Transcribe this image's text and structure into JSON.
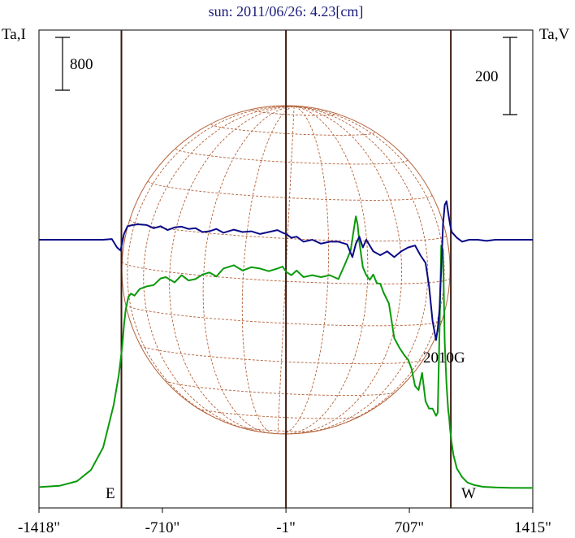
{
  "chart_data": {
    "type": "line",
    "title": "sun: 2011/06/26: 4.23[cm]",
    "left_axis_label": "Ta,I",
    "right_axis_label": "Ta,V",
    "left_scale_bar": "800",
    "right_scale_bar": "200",
    "x_tick_labels": [
      "-1418\"",
      "-710\"",
      "-1\"",
      "707\"",
      "1415\""
    ],
    "x_ticks": [
      -1418,
      -710,
      -1,
      707,
      1415
    ],
    "xlim": [
      -1418,
      1415
    ],
    "marker_labels": {
      "east": "E",
      "west": "W"
    },
    "markers_arcsec": {
      "east": -945,
      "center": -1,
      "west": 945
    },
    "region_label": "2010G",
    "grid": false,
    "colors": {
      "stokes_i": "#0a9a0a",
      "stokes_v": "#0a0a88",
      "disk": "#b5623a",
      "marker": "#3a1a10",
      "title": "#1a1a7a"
    },
    "series": [
      {
        "key": "stokes_i",
        "x": [
          -1418,
          -1300,
          -1200,
          -1120,
          -1050,
          -990,
          -960,
          -940,
          -930,
          -920,
          -905,
          -890,
          -870,
          -840,
          -800,
          -760,
          -720,
          -690,
          -640,
          -600,
          -560,
          -520,
          -480,
          -440,
          -400,
          -360,
          -300,
          -250,
          -200,
          -150,
          -100,
          -50,
          -20,
          0,
          30,
          60,
          100,
          150,
          200,
          250,
          300,
          340,
          370,
          390,
          400,
          410,
          420,
          440,
          460,
          480,
          500,
          520,
          540,
          560,
          590,
          620,
          650,
          680,
          700,
          720,
          740,
          760,
          780,
          800,
          820,
          840,
          860,
          870,
          880,
          890,
          900,
          910,
          920,
          930,
          935,
          940,
          950,
          960,
          980,
          1010,
          1040,
          1080,
          1130,
          1200,
          1280,
          1350,
          1415
        ],
        "y": [
          20,
          40,
          110,
          280,
          620,
          1260,
          1720,
          2160,
          2480,
          2720,
          2900,
          2950,
          2920,
          3020,
          3060,
          3080,
          3180,
          3200,
          3120,
          3230,
          3150,
          3170,
          3240,
          3270,
          3210,
          3330,
          3380,
          3300,
          3350,
          3330,
          3290,
          3330,
          3360,
          3280,
          3230,
          3300,
          3200,
          3230,
          3200,
          3230,
          3170,
          3410,
          3600,
          3950,
          4120,
          4000,
          3730,
          3350,
          3230,
          3160,
          3240,
          3110,
          3100,
          2960,
          2800,
          2280,
          2130,
          2010,
          1950,
          1810,
          1550,
          1490,
          1750,
          1320,
          1210,
          1210,
          1100,
          1150,
          2400,
          3680,
          3610,
          2200,
          1580,
          1180,
          1080,
          910,
          680,
          500,
          300,
          170,
          90,
          50,
          25,
          15,
          10,
          8,
          8
        ]
      },
      {
        "key": "stokes_v",
        "x": [
          -1418,
          -1200,
          -1050,
          -1000,
          -970,
          -950,
          -930,
          -910,
          -880,
          -850,
          -800,
          -760,
          -720,
          -680,
          -640,
          -600,
          -560,
          -520,
          -480,
          -440,
          -400,
          -360,
          -300,
          -250,
          -200,
          -150,
          -100,
          -50,
          -20,
          0,
          30,
          60,
          100,
          150,
          200,
          250,
          300,
          350,
          380,
          400,
          420,
          440,
          460,
          480,
          500,
          540,
          580,
          620,
          660,
          700,
          740,
          770,
          800,
          820,
          840,
          860,
          870,
          880,
          885,
          890,
          900,
          910,
          920,
          930,
          940,
          950,
          960,
          980,
          1010,
          1050,
          1100,
          1150,
          1200,
          1300,
          1415
        ],
        "y": [
          0,
          0,
          0,
          2,
          -20,
          -28,
          15,
          35,
          38,
          40,
          38,
          30,
          35,
          25,
          32,
          34,
          28,
          30,
          20,
          22,
          28,
          18,
          26,
          20,
          22,
          15,
          20,
          25,
          18,
          15,
          5,
          8,
          -5,
          0,
          -10,
          -5,
          -5,
          -12,
          -45,
          -10,
          8,
          -20,
          0,
          -15,
          -30,
          -40,
          -30,
          -45,
          -30,
          -20,
          -15,
          -40,
          -60,
          -120,
          -210,
          -260,
          -230,
          -180,
          -120,
          -80,
          40,
          90,
          100,
          70,
          40,
          20,
          15,
          5,
          -5,
          0,
          0,
          -3,
          0,
          0,
          0
        ]
      }
    ]
  }
}
